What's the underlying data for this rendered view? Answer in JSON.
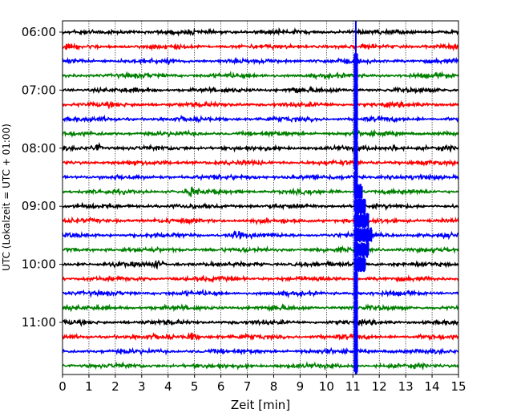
{
  "chart_data": {
    "type": "line",
    "title": "",
    "xlabel": "Zeit  [min]",
    "ylabel": "UTC (Lokalzeit = UTC + 01:00)",
    "xlim": [
      0,
      15
    ],
    "x_ticks": [
      "0",
      "1",
      "2",
      "3",
      "4",
      "5",
      "6",
      "7",
      "8",
      "9",
      "10",
      "11",
      "12",
      "13",
      "14",
      "15"
    ],
    "y_tick_labels": [
      {
        "row": 0,
        "label": "06:00"
      },
      {
        "row": 4,
        "label": "07:00"
      },
      {
        "row": 8,
        "label": "08:00"
      },
      {
        "row": 12,
        "label": "09:00"
      },
      {
        "row": 16,
        "label": "10:00"
      },
      {
        "row": 20,
        "label": "11:00"
      }
    ],
    "row_minutes": 15,
    "row_count": 24,
    "row_colors": [
      "#000000",
      "#ff0000",
      "#0000ff",
      "#008000"
    ],
    "vertical_grid": true,
    "event": {
      "row": 14,
      "onset_minute": 11.05,
      "color": "#0000ff",
      "description_amplitude_peak": "saturated"
    },
    "local_events": [
      {
        "row": 4,
        "minute": 8.75
      },
      {
        "row": 8,
        "minute": 1.3
      },
      {
        "row": 8,
        "minute": 12.6
      },
      {
        "row": 11,
        "minute": 4.9
      },
      {
        "row": 14,
        "minute": 6.6
      },
      {
        "row": 16,
        "minute": 3.6
      },
      {
        "row": 21,
        "minute": 4.9
      }
    ]
  }
}
